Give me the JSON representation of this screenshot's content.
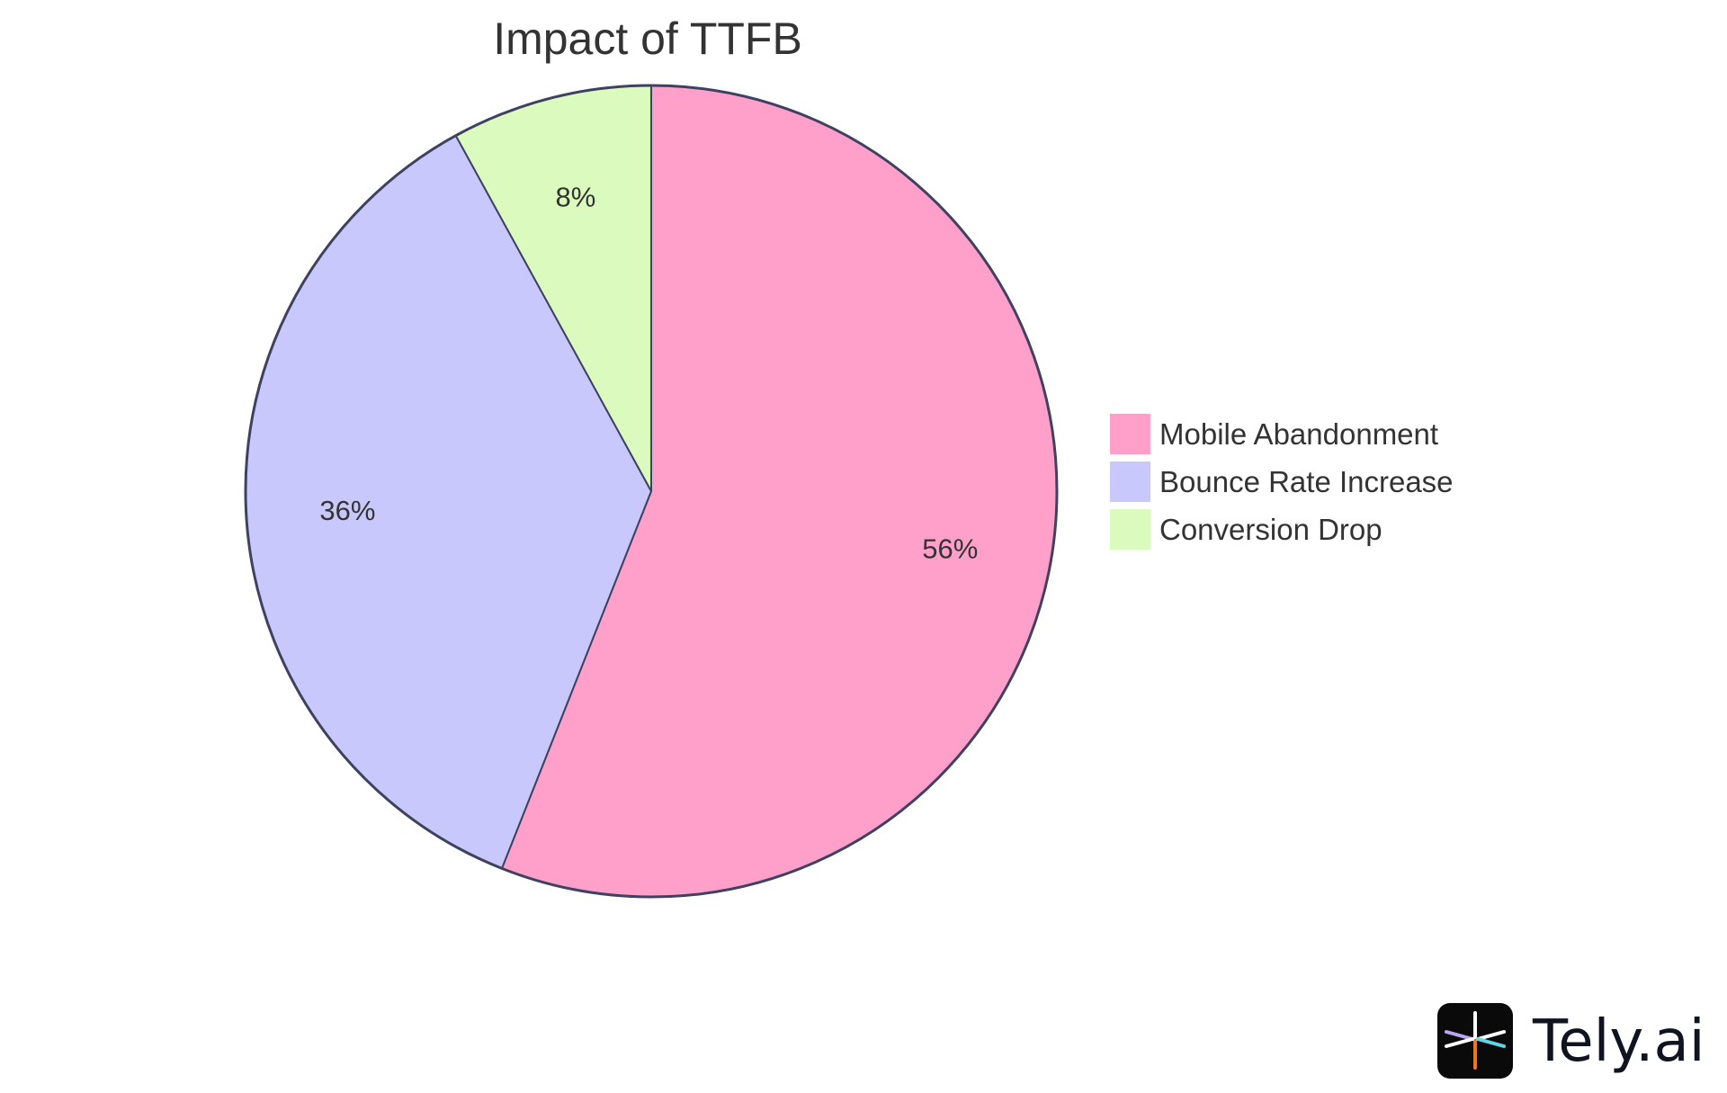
{
  "chart_data": {
    "type": "pie",
    "title": "Impact of TTFB",
    "categories": [
      "Mobile Abandonment",
      "Bounce Rate Increase",
      "Conversion Drop"
    ],
    "values": [
      56,
      36,
      8
    ],
    "labels": [
      "56%",
      "36%",
      "8%"
    ],
    "colors": [
      "#ffa0cb",
      "#c8c8fd",
      "#dbfabd"
    ],
    "stroke_color": "#3e4260",
    "start_angle": "12 o'clock",
    "direction": "clockwise",
    "legend_position": "right"
  },
  "legend": {
    "items": [
      {
        "label": "Mobile Abandonment",
        "color": "#ffa0cb"
      },
      {
        "label": "Bounce Rate Increase",
        "color": "#c8c8fd"
      },
      {
        "label": "Conversion Drop",
        "color": "#dbfabd"
      }
    ]
  },
  "branding": {
    "logo_text": "Tely.ai",
    "logo_icon": "tely-asterisk-logo-icon"
  }
}
